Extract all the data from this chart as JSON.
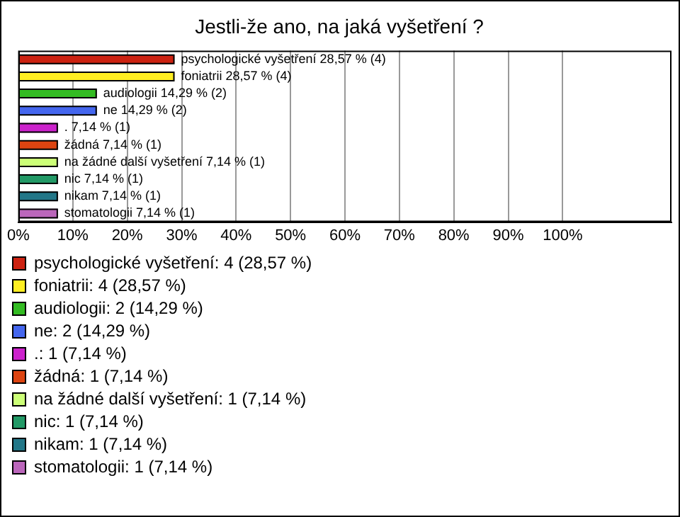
{
  "chart_data": {
    "type": "bar",
    "orientation": "horizontal",
    "title": "Jestli-že ano, na jaká vyšetření ?",
    "categories": [
      null,
      null,
      null,
      null,
      null,
      null,
      null,
      null,
      null,
      null
    ],
    "series": [
      {
        "name": "psychologické vyšetření: 4 (28,57 %)",
        "color": "#cc2211",
        "values": [
          28.57,
          null,
          null,
          null,
          null,
          null,
          null,
          null,
          null,
          null
        ],
        "value_labels": [
          "psychologické vyšetření 28,57 % (4)",
          null,
          null,
          null,
          null,
          null,
          null,
          null,
          null,
          null
        ]
      },
      {
        "name": "foniatrii: 4 (28,57 %)",
        "color": "#ffee22",
        "values": [
          null,
          28.57,
          null,
          null,
          null,
          null,
          null,
          null,
          null,
          null
        ],
        "value_labels": [
          null,
          "foniatrii 28,57 % (4)",
          null,
          null,
          null,
          null,
          null,
          null,
          null,
          null
        ]
      },
      {
        "name": "audiologii: 2 (14,29 %)",
        "color": "#33bb22",
        "values": [
          null,
          null,
          14.29,
          null,
          null,
          null,
          null,
          null,
          null,
          null
        ],
        "value_labels": [
          null,
          null,
          "audiologii 14,29 % (2)",
          null,
          null,
          null,
          null,
          null,
          null,
          null
        ]
      },
      {
        "name": "ne: 2 (14,29 %)",
        "color": "#4466ee",
        "values": [
          null,
          null,
          null,
          14.29,
          null,
          null,
          null,
          null,
          null,
          null
        ],
        "value_labels": [
          null,
          null,
          null,
          "ne 14,29 % (2)",
          null,
          null,
          null,
          null,
          null,
          null
        ]
      },
      {
        "name": ".: 1 (7,14 %)",
        "color": "#cc22cc",
        "values": [
          null,
          null,
          null,
          null,
          7.14,
          null,
          null,
          null,
          null,
          null
        ],
        "value_labels": [
          null,
          null,
          null,
          null,
          ". 7,14 % (1)",
          null,
          null,
          null,
          null,
          null
        ]
      },
      {
        "name": "žádná: 1 (7,14 %)",
        "color": "#dd4411",
        "values": [
          null,
          null,
          null,
          null,
          null,
          7.14,
          null,
          null,
          null,
          null
        ],
        "value_labels": [
          null,
          null,
          null,
          null,
          null,
          "žádná 7,14 % (1)",
          null,
          null,
          null,
          null
        ]
      },
      {
        "name": "na žádné další vyšetření: 1 (7,14 %)",
        "color": "#ccff77",
        "values": [
          null,
          null,
          null,
          null,
          null,
          null,
          7.14,
          null,
          null,
          null
        ],
        "value_labels": [
          null,
          null,
          null,
          null,
          null,
          null,
          "na žádné další vyšetření 7,14 % (1)",
          null,
          null,
          null
        ]
      },
      {
        "name": "nic: 1 (7,14 %)",
        "color": "#229966",
        "values": [
          null,
          null,
          null,
          null,
          null,
          null,
          null,
          7.14,
          null,
          null
        ],
        "value_labels": [
          null,
          null,
          null,
          null,
          null,
          null,
          null,
          "nic 7,14 % (1)",
          null,
          null
        ]
      },
      {
        "name": "nikam: 1 (7,14 %)",
        "color": "#227788",
        "values": [
          null,
          null,
          null,
          null,
          null,
          null,
          null,
          null,
          7.14,
          null
        ],
        "value_labels": [
          null,
          null,
          null,
          null,
          null,
          null,
          null,
          null,
          "nikam 7,14 % (1)",
          null
        ]
      },
      {
        "name": "stomatologii: 1 (7,14 %)",
        "color": "#bb66bb",
        "values": [
          null,
          null,
          null,
          null,
          null,
          null,
          null,
          null,
          null,
          7.14
        ],
        "value_labels": [
          null,
          null,
          null,
          null,
          null,
          null,
          null,
          null,
          null,
          "stomatologii 7,14 % (1)"
        ]
      }
    ],
    "xlim": [
      0,
      120
    ],
    "xticks": [
      {
        "value": 0,
        "label": "0%"
      },
      {
        "value": 10,
        "label": "10%"
      },
      {
        "value": 20,
        "label": "20%"
      },
      {
        "value": 30,
        "label": "30%"
      },
      {
        "value": 40,
        "label": "40%"
      },
      {
        "value": 50,
        "label": "50%"
      },
      {
        "value": 60,
        "label": "60%"
      },
      {
        "value": 70,
        "label": "70%"
      },
      {
        "value": 80,
        "label": "80%"
      },
      {
        "value": 90,
        "label": "90%"
      },
      {
        "value": 100,
        "label": "100%"
      }
    ],
    "grid": "x",
    "legend": "bottom",
    "tick_labels": "x"
  }
}
